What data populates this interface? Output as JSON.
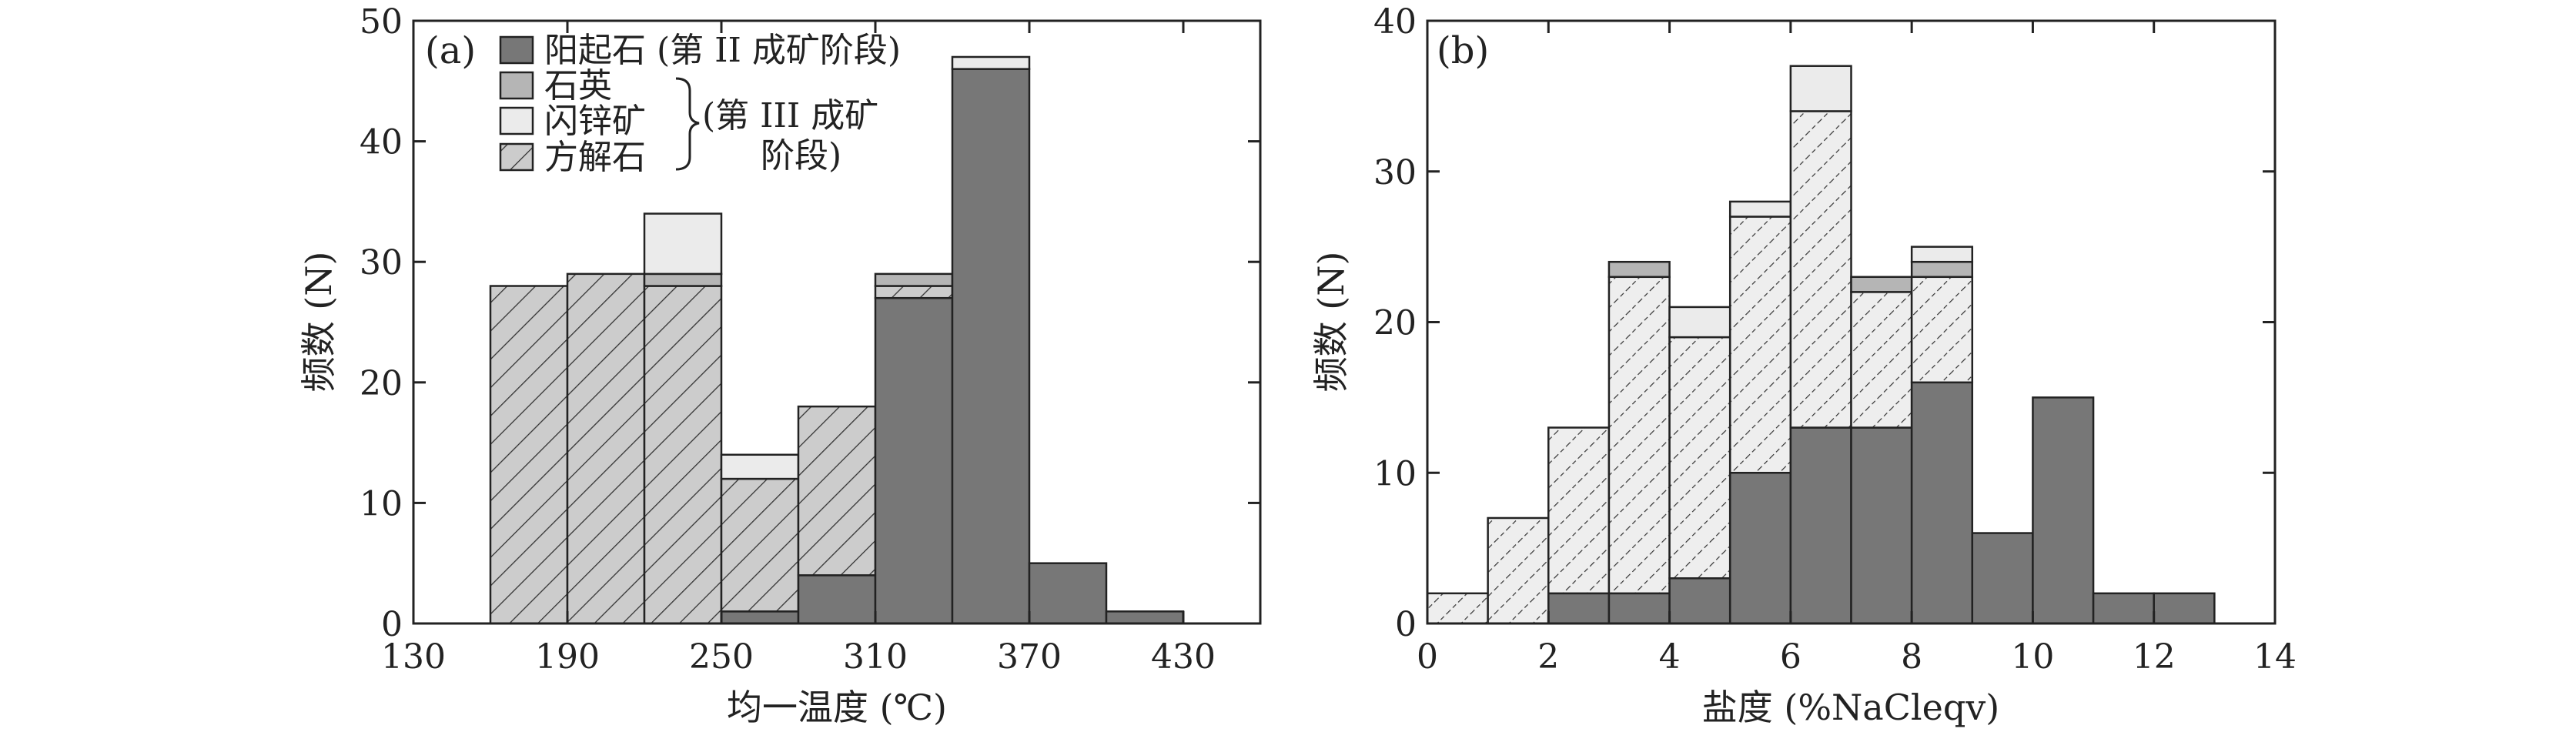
{
  "colors": {
    "actinolite": "#777777",
    "quartz": "#b5b5b5",
    "sphalerite": "#ebebeb",
    "calcite_fill_a": "#cccccc",
    "calcite_fill_b": "#eeeeee",
    "hatch_line": "#333333",
    "stroke": "#222222"
  },
  "legend": {
    "actinolite": "阳起石 (第 II 成矿阶段)",
    "quartz": "石英",
    "sphalerite": "闪锌矿",
    "calcite": "方解石",
    "stage3_line1": "(第 III 成矿",
    "stage3_line2": "阶段)"
  },
  "chart_data": [
    {
      "type": "bar",
      "stacked": true,
      "panel_label": "(a)",
      "xlabel": "均一温度 (℃)",
      "ylabel": "频数 (N)",
      "xlim": [
        130,
        460
      ],
      "ylim": [
        0,
        50
      ],
      "xticks": [
        130,
        190,
        250,
        310,
        370,
        430
      ],
      "yticks": [
        0,
        10,
        20,
        30,
        40,
        50
      ],
      "bins": [
        [
          160,
          190
        ],
        [
          190,
          220
        ],
        [
          220,
          250
        ],
        [
          250,
          280
        ],
        [
          280,
          310
        ],
        [
          310,
          340
        ],
        [
          340,
          370
        ],
        [
          370,
          400
        ],
        [
          400,
          430
        ]
      ],
      "series": [
        {
          "name": "阳起石",
          "key": "actinolite",
          "values": [
            0,
            0,
            0,
            1,
            4,
            27,
            46,
            5,
            1
          ]
        },
        {
          "name": "方解石",
          "key": "calcite",
          "values": [
            28,
            29,
            28,
            11,
            14,
            1,
            0,
            0,
            0
          ]
        },
        {
          "name": "石英",
          "key": "quartz",
          "values": [
            0,
            0,
            1,
            0,
            0,
            1,
            0,
            0,
            0
          ]
        },
        {
          "name": "闪锌矿",
          "key": "sphalerite",
          "values": [
            0,
            0,
            5,
            2,
            0,
            0,
            1,
            0,
            0
          ]
        }
      ]
    },
    {
      "type": "bar",
      "stacked": true,
      "panel_label": "(b)",
      "xlabel": "盐度 (%NaCleqv)",
      "ylabel": "频数 (N)",
      "xlim": [
        0,
        14
      ],
      "ylim": [
        0,
        40
      ],
      "xticks": [
        0,
        2,
        4,
        6,
        8,
        10,
        12,
        14
      ],
      "yticks": [
        0,
        10,
        20,
        30,
        40
      ],
      "bins": [
        [
          0,
          1
        ],
        [
          1,
          2
        ],
        [
          2,
          3
        ],
        [
          3,
          4
        ],
        [
          4,
          5
        ],
        [
          5,
          6
        ],
        [
          6,
          7
        ],
        [
          7,
          8
        ],
        [
          8,
          9
        ],
        [
          9,
          10
        ],
        [
          10,
          11
        ],
        [
          11,
          12
        ],
        [
          12,
          13
        ]
      ],
      "series": [
        {
          "name": "阳起石",
          "key": "actinolite",
          "values": [
            0,
            0,
            2,
            2,
            3,
            10,
            13,
            13,
            16,
            6,
            15,
            2,
            2
          ]
        },
        {
          "name": "方解石",
          "key": "calcite",
          "values": [
            2,
            7,
            11,
            21,
            16,
            17,
            21,
            9,
            7,
            0,
            0,
            0,
            0
          ]
        },
        {
          "name": "石英",
          "key": "quartz",
          "values": [
            0,
            0,
            0,
            1,
            0,
            0,
            0,
            1,
            1,
            0,
            0,
            0,
            0
          ]
        },
        {
          "name": "闪锌矿",
          "key": "sphalerite",
          "values": [
            0,
            0,
            0,
            0,
            2,
            1,
            3,
            0,
            1,
            0,
            0,
            0,
            0
          ]
        }
      ]
    }
  ]
}
